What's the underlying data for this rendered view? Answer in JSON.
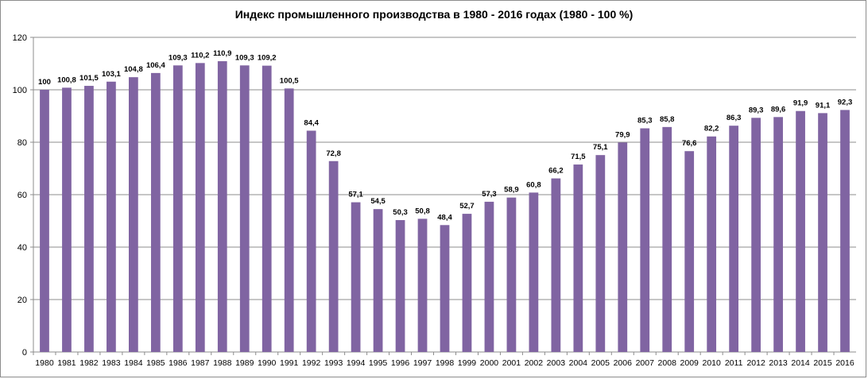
{
  "chart_data": {
    "type": "bar",
    "title": "Индекс промышленного производства в 1980 - 2016 годах (1980 - 100 %)",
    "xlabel": "",
    "ylabel": "",
    "ylim": [
      0,
      120
    ],
    "yticks": [
      0,
      20,
      40,
      60,
      80,
      100,
      120
    ],
    "grid": true,
    "legend": "none",
    "bar_color": "#8064a2",
    "categories": [
      "1980",
      "1981",
      "1982",
      "1983",
      "1984",
      "1985",
      "1986",
      "1987",
      "1988",
      "1989",
      "1990",
      "1991",
      "1992",
      "1993",
      "1994",
      "1995",
      "1996",
      "1997",
      "1998",
      "1999",
      "2000",
      "2001",
      "2002",
      "2003",
      "2004",
      "2005",
      "2006",
      "2007",
      "2008",
      "2009",
      "2010",
      "2011",
      "2012",
      "2013",
      "2014",
      "2015",
      "2016"
    ],
    "values": [
      100,
      100.8,
      101.5,
      103.1,
      104.8,
      106.4,
      109.3,
      110.2,
      110.9,
      109.3,
      109.2,
      100.5,
      84.4,
      72.8,
      57.1,
      54.5,
      50.3,
      50.8,
      48.4,
      52.7,
      57.3,
      58.9,
      60.8,
      66.2,
      71.5,
      75.1,
      79.9,
      85.3,
      85.8,
      76.6,
      82.2,
      86.3,
      89.3,
      89.6,
      91.9,
      91.1,
      92.3
    ],
    "data_labels": [
      "100",
      "100,8",
      "101,5",
      "103,1",
      "104,8",
      "106,4",
      "109,3",
      "110,2",
      "110,9",
      "109,3",
      "109,2",
      "100,5",
      "84,4",
      "72,8",
      "57,1",
      "54,5",
      "50,3",
      "50,8",
      "48,4",
      "52,7",
      "57,3",
      "58,9",
      "60,8",
      "66,2",
      "71,5",
      "75,1",
      "79,9",
      "85,3",
      "85,8",
      "76,6",
      "82,2",
      "86,3",
      "89,3",
      "89,6",
      "91,9",
      "91,1",
      "92,3"
    ]
  }
}
